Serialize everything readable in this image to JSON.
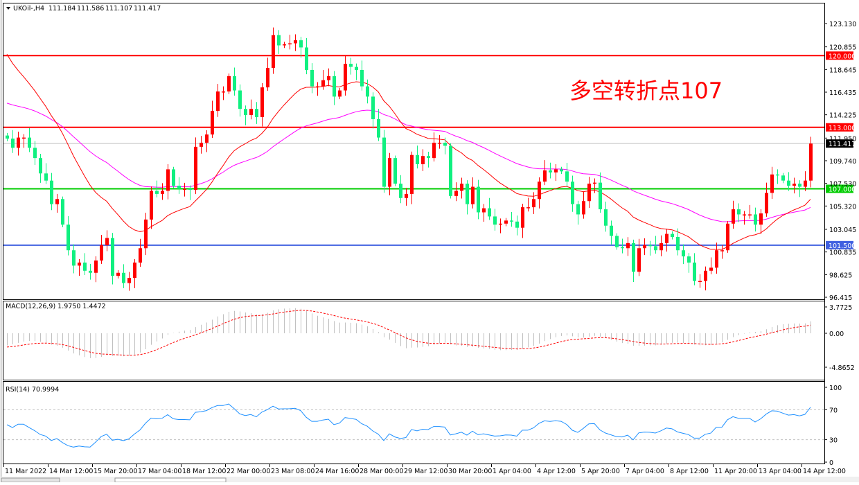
{
  "header": {
    "symbol": "UKOil-,H4",
    "open": "111.184",
    "high": "111.586",
    "low": "111.107",
    "close": "111.417"
  },
  "annotation": "多空转折点107",
  "colors": {
    "bull": "#ff0000",
    "bear": "#10f080",
    "fast_ma": "#ff0000",
    "slow_ma": "#ff00ff",
    "rsi": "#1e90ff",
    "macd_hist": "#c0c0c0",
    "macd_signal": "#ff0000"
  },
  "chart_data": [
    {
      "type": "candlestick",
      "timeframe": "H4",
      "price_axis_ticks": [
        "123.130",
        "120.855",
        "118.645",
        "116.435",
        "114.225",
        "111.950",
        "109.740",
        "107.530",
        "105.320",
        "103.045",
        "100.835",
        "98.625",
        "96.415"
      ],
      "ylim": [
        96.415,
        123.13
      ],
      "levels": [
        {
          "label": "120.000",
          "value": 120.0,
          "color": "#ff0000"
        },
        {
          "label": "113.000",
          "value": 113.0,
          "color": "#ff0000"
        },
        {
          "label": "107.000",
          "value": 107.0,
          "color": "#00cc00"
        },
        {
          "label": "101.500",
          "value": 101.5,
          "color": "#4060e0"
        }
      ],
      "current_price": {
        "label": "111.417",
        "value": 111.417
      },
      "closes": [
        111.9,
        111.0,
        112.0,
        112.0,
        111.0,
        110.0,
        108.5,
        107.8,
        105.5,
        106.0,
        103.5,
        101.0,
        99.5,
        99.8,
        99.0,
        98.8,
        100.0,
        101.5,
        102.2,
        98.5,
        98.8,
        97.8,
        98.3,
        99.8,
        101.2,
        104.0,
        106.8,
        106.5,
        106.8,
        108.9,
        107.3,
        107.0,
        107.0,
        106.9,
        111.1,
        111.5,
        112.3,
        114.6,
        116.5,
        116.5,
        118.0,
        116.6,
        114.8,
        114.2,
        114.8,
        114.0,
        116.9,
        118.8,
        122.0,
        121.0,
        121.1,
        121.2,
        121.5,
        120.8,
        118.6,
        117.0,
        117.0,
        117.6,
        118.0,
        116.0,
        116.6,
        119.2,
        118.9,
        118.6,
        117.0,
        116.0,
        113.8,
        112.0,
        107.2,
        110.0,
        107.5,
        106.1,
        106.5,
        110.3,
        109.4,
        110.2,
        110.0,
        111.5,
        111.5,
        111.2,
        106.3,
        106.8,
        107.5,
        105.5,
        107.2,
        104.7,
        105.1,
        104.3,
        103.5,
        103.6,
        103.9,
        103.8,
        103.2,
        105.2,
        105.2,
        106.0,
        107.7,
        108.8,
        108.6,
        108.9,
        108.7,
        107.7,
        105.5,
        104.5,
        105.8,
        107.5,
        107.6,
        105.0,
        103.4,
        102.4,
        101.3,
        101.2,
        101.7,
        98.9,
        101.2,
        101.5,
        101.4,
        101.0,
        101.7,
        102.6,
        102.3,
        101.0,
        100.4,
        99.8,
        98.0,
        98.0,
        99.0,
        99.3,
        101.0,
        101.0,
        103.6,
        105.0,
        104.5,
        104.5,
        104.5,
        103.5,
        104.6,
        106.6,
        108.4,
        108.3,
        107.8,
        107.3,
        107.5,
        107.2,
        107.8,
        111.417
      ],
      "time_axis_ticks": [
        "11 Mar 2022",
        "14 Mar 12:00",
        "15 Mar 20:00",
        "17 Mar 04:00",
        "18 Mar 12:00",
        "22 Mar 00:00",
        "23 Mar 08:00",
        "24 Mar 16:00",
        "28 Mar 00:00",
        "29 Mar 12:00",
        "30 Mar 20:00",
        "1 Apr 04:00",
        "4 Apr 12:00",
        "5 Apr 20:00",
        "7 Apr 04:00",
        "8 Apr 12:00",
        "11 Apr 20:00",
        "13 Apr 04:00",
        "14 Apr 12:00"
      ]
    },
    {
      "type": "bar+line",
      "title": "MACD(12,26,9) 1.9750 1.4472",
      "axis_ticks": [
        "3.7725",
        "0.00",
        "-4.8652"
      ],
      "ylim": [
        -4.8652,
        3.7725
      ]
    },
    {
      "type": "line",
      "title": "RSI(14) 70.9994",
      "axis_ticks": [
        "100",
        "70",
        "30",
        "0"
      ],
      "levels": [
        70,
        30
      ],
      "ylim": [
        0,
        100
      ]
    }
  ]
}
